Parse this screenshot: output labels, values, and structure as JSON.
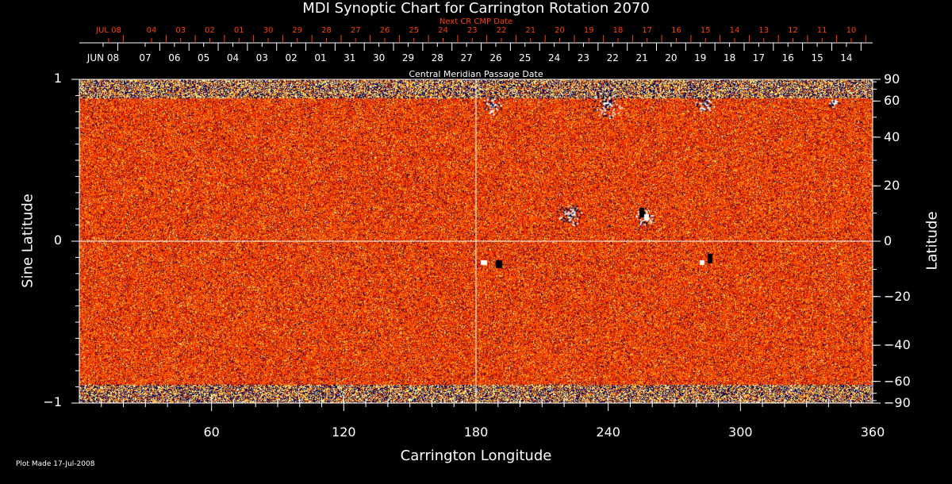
{
  "chart_data": {
    "type": "heatmap",
    "title": "MDI Synoptic Chart for Carrington Rotation 2070",
    "xlabel": "Carrington Longitude",
    "ylabel_left": "Sine Latitude",
    "ylabel_right": "Latitude",
    "xlim": [
      0,
      360
    ],
    "ylim": [
      -1,
      1
    ],
    "x_ticks": [
      "60",
      "120",
      "180",
      "240",
      "300",
      "360"
    ],
    "y_ticks_left": [
      "1",
      "0",
      "−1"
    ],
    "y_ticks_right": [
      "90",
      "60",
      "40",
      "20",
      "0",
      "−20",
      "−40",
      "−60",
      "−90"
    ],
    "y_ticks_right_values": [
      90,
      60,
      40,
      20,
      0,
      -20,
      -40,
      -60,
      -90
    ],
    "top_axis_label": "Central Meridian Passage Date",
    "top_axis_dates": [
      "JUN 08",
      "07",
      "06",
      "05",
      "04",
      "03",
      "02",
      "01",
      "31",
      "30",
      "29",
      "28",
      "27",
      "26",
      "25",
      "24",
      "23",
      "22",
      "21",
      "20",
      "19",
      "18",
      "17",
      "16",
      "15",
      "14"
    ],
    "next_cr_label": "Next CR CMP Date",
    "next_cr_dates": [
      "JUL 08",
      "04",
      "03",
      "02",
      "01",
      "30",
      "29",
      "28",
      "27",
      "26",
      "25",
      "24",
      "23",
      "22",
      "21",
      "20",
      "19",
      "18",
      "17",
      "16",
      "15",
      "14",
      "13",
      "12",
      "11",
      "10"
    ],
    "colors": {
      "background": "#000000",
      "next_cr": "#ff4000",
      "axes": "#ffffff",
      "field_low": "#000080",
      "field_mid": "#ff4000",
      "field_high": "#ffff60"
    }
  },
  "footer": {
    "plot_made": "Plot Made 17-Jul-2008"
  }
}
